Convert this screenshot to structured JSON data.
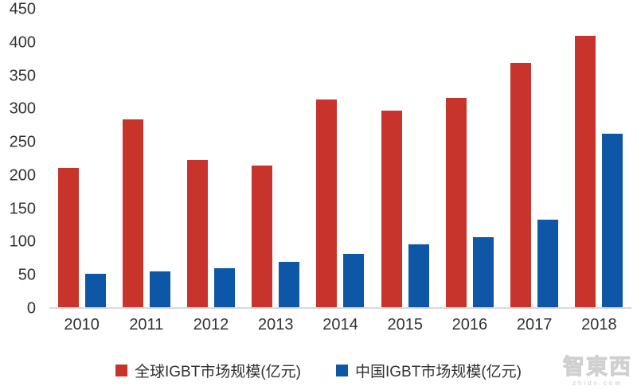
{
  "chart_data": {
    "type": "bar",
    "categories": [
      "2010",
      "2011",
      "2012",
      "2013",
      "2014",
      "2015",
      "2016",
      "2017",
      "2018"
    ],
    "series": [
      {
        "name": "全球IGBT市场规模(亿元)",
        "color": "#C8342C",
        "values": [
          210,
          283,
          221,
          213,
          313,
          296,
          315,
          368,
          408
        ]
      },
      {
        "name": "中国IGBT市场规模(亿元)",
        "color": "#0E57A7",
        "values": [
          50,
          54,
          59,
          68,
          80,
          95,
          105,
          132,
          261
        ]
      }
    ],
    "title": "",
    "xlabel": "",
    "ylabel": "",
    "ylim": [
      0,
      450
    ],
    "ytick_step": 50,
    "grid": false,
    "legend_position": "bottom"
  },
  "colors": {
    "axis_text": "#333333",
    "axis_line": "#D9D9D9",
    "background": "#FFFFFF"
  },
  "watermark": {
    "title": "智東西",
    "subtitle": "zhidx.com"
  }
}
